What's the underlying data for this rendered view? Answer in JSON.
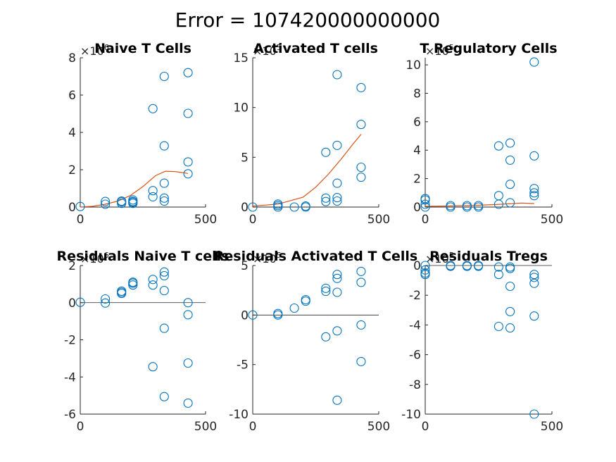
{
  "figure": {
    "title": "Error = 107420000000000"
  },
  "colors": {
    "marker": "#0072BD",
    "fit": "#D95319",
    "axis": "#262626",
    "zero": "#262626"
  },
  "chart_data": [
    {
      "type": "scatter",
      "title": "Naive T Cells",
      "xlim": [
        0,
        500
      ],
      "ylim": [
        0,
        8000000
      ],
      "exponent": {
        "base": "×10",
        "power": "6"
      },
      "x_ticks": [
        {
          "v": 0,
          "label": "0"
        },
        {
          "v": 500,
          "label": "500"
        }
      ],
      "y_ticks": [
        {
          "v": 0,
          "label": "0"
        },
        {
          "v": 2000000,
          "label": "2"
        },
        {
          "v": 4000000,
          "label": "4"
        },
        {
          "v": 6000000,
          "label": "6"
        },
        {
          "v": 8000000,
          "label": "8"
        }
      ],
      "zero_line": false,
      "points": [
        [
          0,
          30000
        ],
        [
          100,
          150000
        ],
        [
          100,
          300000
        ],
        [
          165,
          200000
        ],
        [
          165,
          280000
        ],
        [
          165,
          320000
        ],
        [
          210,
          200000
        ],
        [
          210,
          260000
        ],
        [
          210,
          300000
        ],
        [
          210,
          380000
        ],
        [
          290,
          550000
        ],
        [
          290,
          880000
        ],
        [
          290,
          5270000
        ],
        [
          335,
          320000
        ],
        [
          335,
          480000
        ],
        [
          335,
          1280000
        ],
        [
          335,
          3280000
        ],
        [
          335,
          7000000
        ],
        [
          430,
          1780000
        ],
        [
          430,
          2420000
        ],
        [
          430,
          5020000
        ],
        [
          430,
          7200000
        ]
      ],
      "fit": [
        [
          0,
          0
        ],
        [
          50,
          40000
        ],
        [
          100,
          150000
        ],
        [
          150,
          320000
        ],
        [
          200,
          620000
        ],
        [
          250,
          1100000
        ],
        [
          300,
          1680000
        ],
        [
          340,
          1920000
        ],
        [
          380,
          1900000
        ],
        [
          430,
          1800000
        ]
      ]
    },
    {
      "type": "scatter",
      "title": "Activated T cells",
      "xlim": [
        0,
        500
      ],
      "ylim": [
        0,
        1500000
      ],
      "exponent": {
        "base": "×10",
        "power": "5"
      },
      "x_ticks": [
        {
          "v": 0,
          "label": "0"
        },
        {
          "v": 500,
          "label": "500"
        }
      ],
      "y_ticks": [
        {
          "v": 0,
          "label": "0"
        },
        {
          "v": 500000,
          "label": "5"
        },
        {
          "v": 1000000,
          "label": "10"
        },
        {
          "v": 1500000,
          "label": "15"
        }
      ],
      "zero_line": false,
      "points": [
        [
          0,
          0
        ],
        [
          100,
          0
        ],
        [
          100,
          15000
        ],
        [
          100,
          30000
        ],
        [
          165,
          0
        ],
        [
          210,
          0
        ],
        [
          210,
          10000
        ],
        [
          290,
          55000
        ],
        [
          290,
          90000
        ],
        [
          290,
          550000
        ],
        [
          335,
          60000
        ],
        [
          335,
          95000
        ],
        [
          335,
          240000
        ],
        [
          335,
          620000
        ],
        [
          335,
          1330000
        ],
        [
          430,
          300000
        ],
        [
          430,
          400000
        ],
        [
          430,
          830000
        ],
        [
          430,
          1200000
        ]
      ],
      "fit": [
        [
          0,
          10000
        ],
        [
          100,
          30000
        ],
        [
          200,
          100000
        ],
        [
          250,
          200000
        ],
        [
          300,
          330000
        ],
        [
          350,
          480000
        ],
        [
          400,
          640000
        ],
        [
          430,
          730000
        ]
      ]
    },
    {
      "type": "scatter",
      "title": "T Regulatory Cells",
      "xlim": [
        0,
        500
      ],
      "ylim": [
        0,
        1050000
      ],
      "exponent": {
        "base": "×10",
        "power": "5"
      },
      "x_ticks": [
        {
          "v": 0,
          "label": "0"
        },
        {
          "v": 500,
          "label": "500"
        }
      ],
      "y_ticks": [
        {
          "v": 0,
          "label": "0"
        },
        {
          "v": 200000,
          "label": "2"
        },
        {
          "v": 400000,
          "label": "4"
        },
        {
          "v": 600000,
          "label": "6"
        },
        {
          "v": 800000,
          "label": "8"
        },
        {
          "v": 1000000,
          "label": "10"
        }
      ],
      "zero_line": false,
      "points": [
        [
          0,
          0
        ],
        [
          0,
          20000
        ],
        [
          0,
          50000
        ],
        [
          0,
          60000
        ],
        [
          100,
          0
        ],
        [
          100,
          10000
        ],
        [
          165,
          0
        ],
        [
          165,
          10000
        ],
        [
          210,
          0
        ],
        [
          210,
          10000
        ],
        [
          290,
          20000
        ],
        [
          290,
          80000
        ],
        [
          290,
          430000
        ],
        [
          335,
          30000
        ],
        [
          335,
          160000
        ],
        [
          335,
          330000
        ],
        [
          335,
          450000
        ],
        [
          430,
          80000
        ],
        [
          430,
          100000
        ],
        [
          430,
          130000
        ],
        [
          430,
          360000
        ],
        [
          430,
          1020000
        ]
      ],
      "fit": [
        [
          0,
          5000
        ],
        [
          100,
          8000
        ],
        [
          200,
          12000
        ],
        [
          300,
          20000
        ],
        [
          380,
          28000
        ],
        [
          430,
          25000
        ]
      ]
    },
    {
      "type": "scatter",
      "title": "Residuals Naive T cells",
      "xlim": [
        0,
        500
      ],
      "ylim": [
        -6000000,
        2000000
      ],
      "exponent": {
        "base": "×10",
        "power": "6"
      },
      "x_ticks": [
        {
          "v": 0,
          "label": "0"
        },
        {
          "v": 500,
          "label": "500"
        }
      ],
      "y_ticks": [
        {
          "v": -6000000,
          "label": "-6"
        },
        {
          "v": -4000000,
          "label": "-4"
        },
        {
          "v": -2000000,
          "label": "-2"
        },
        {
          "v": 0,
          "label": "0"
        },
        {
          "v": 2000000,
          "label": "2"
        }
      ],
      "zero_line": true,
      "points": [
        [
          0,
          20000
        ],
        [
          100,
          -20000
        ],
        [
          100,
          200000
        ],
        [
          165,
          500000
        ],
        [
          165,
          560000
        ],
        [
          165,
          620000
        ],
        [
          210,
          950000
        ],
        [
          210,
          1050000
        ],
        [
          210,
          1100000
        ],
        [
          290,
          -3450000
        ],
        [
          290,
          950000
        ],
        [
          290,
          1250000
        ],
        [
          335,
          -5060000
        ],
        [
          335,
          -1380000
        ],
        [
          335,
          650000
        ],
        [
          335,
          1450000
        ],
        [
          335,
          1650000
        ],
        [
          430,
          -5410000
        ],
        [
          430,
          -3250000
        ],
        [
          430,
          -650000
        ],
        [
          430,
          0
        ]
      ],
      "fit": []
    },
    {
      "type": "scatter",
      "title": "Residuals Activated T Cells",
      "xlim": [
        0,
        500
      ],
      "ylim": [
        -1000000,
        500000
      ],
      "exponent": {
        "base": "×10",
        "power": "5"
      },
      "x_ticks": [
        {
          "v": 0,
          "label": "0"
        },
        {
          "v": 500,
          "label": "500"
        }
      ],
      "y_ticks": [
        {
          "v": -1000000,
          "label": "-10"
        },
        {
          "v": -500000,
          "label": "-5"
        },
        {
          "v": 0,
          "label": "0"
        },
        {
          "v": 500000,
          "label": "5"
        }
      ],
      "zero_line": true,
      "points": [
        [
          0,
          0
        ],
        [
          100,
          0
        ],
        [
          100,
          15000
        ],
        [
          165,
          70000
        ],
        [
          210,
          140000
        ],
        [
          210,
          155000
        ],
        [
          290,
          -220000
        ],
        [
          290,
          240000
        ],
        [
          290,
          270000
        ],
        [
          335,
          -860000
        ],
        [
          335,
          -160000
        ],
        [
          335,
          230000
        ],
        [
          335,
          370000
        ],
        [
          335,
          410000
        ],
        [
          430,
          -470000
        ],
        [
          430,
          -100000
        ],
        [
          430,
          330000
        ],
        [
          430,
          440000
        ]
      ],
      "fit": []
    },
    {
      "type": "scatter",
      "title": "Residuals Tregs",
      "xlim": [
        0,
        500
      ],
      "ylim": [
        -1000000,
        0
      ],
      "exponent": {
        "base": "×10",
        "power": "5"
      },
      "x_ticks": [
        {
          "v": 0,
          "label": "0"
        },
        {
          "v": 500,
          "label": "500"
        }
      ],
      "y_ticks": [
        {
          "v": -1000000,
          "label": "-10"
        },
        {
          "v": -800000,
          "label": "-8"
        },
        {
          "v": -600000,
          "label": "-6"
        },
        {
          "v": -400000,
          "label": "-4"
        },
        {
          "v": -200000,
          "label": "-2"
        },
        {
          "v": 0,
          "label": "0"
        }
      ],
      "zero_line": true,
      "points": [
        [
          0,
          0
        ],
        [
          0,
          -30000
        ],
        [
          0,
          -50000
        ],
        [
          0,
          -60000
        ],
        [
          100,
          0
        ],
        [
          100,
          -5000
        ],
        [
          165,
          0
        ],
        [
          165,
          -5000
        ],
        [
          210,
          0
        ],
        [
          210,
          -5000
        ],
        [
          290,
          -10000
        ],
        [
          290,
          -60000
        ],
        [
          290,
          -410000
        ],
        [
          335,
          -10000
        ],
        [
          335,
          -20000
        ],
        [
          335,
          -140000
        ],
        [
          335,
          -310000
        ],
        [
          335,
          -420000
        ],
        [
          430,
          -60000
        ],
        [
          430,
          -80000
        ],
        [
          430,
          -120000
        ],
        [
          430,
          -340000
        ],
        [
          430,
          -1000000
        ]
      ],
      "fit": []
    }
  ]
}
